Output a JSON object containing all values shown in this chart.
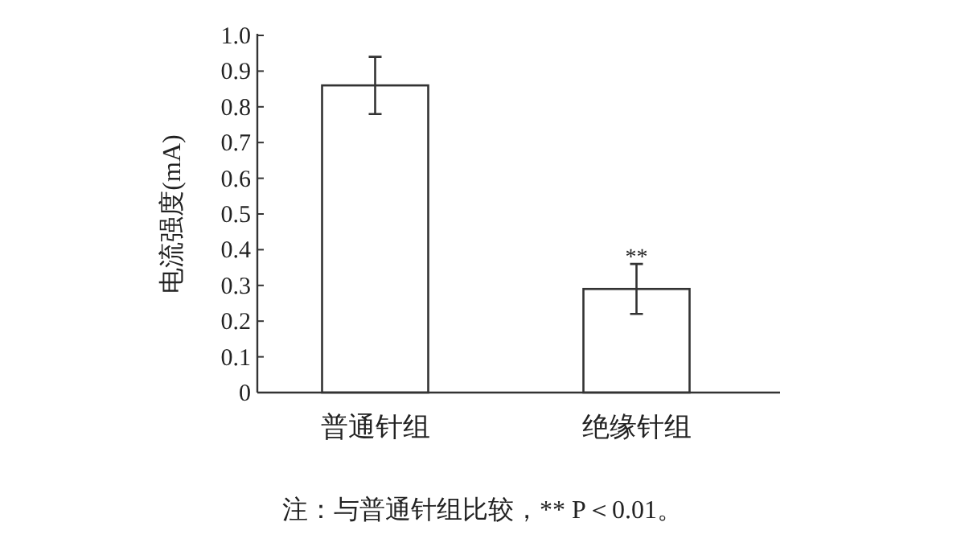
{
  "chart_data": {
    "type": "bar",
    "ylabel": "电流强度(mA)",
    "categories": [
      "普通针组",
      "绝缘针组"
    ],
    "values": [
      0.86,
      0.29
    ],
    "errors": [
      0.08,
      0.07
    ],
    "color": "#ffffff",
    "ylim": [
      0,
      1.0
    ],
    "yticks": [
      0,
      0.1,
      0.2,
      0.3,
      0.4,
      0.5,
      0.6,
      0.7,
      0.8,
      0.9,
      {
        "value": 1.0,
        "label": "1.0"
      }
    ],
    "grid": false,
    "annotations": [
      {
        "text": "**",
        "x": "绝缘针组",
        "y": 0.36
      },
      "注：与普通针组比较，** P＜0.01。"
    ]
  }
}
